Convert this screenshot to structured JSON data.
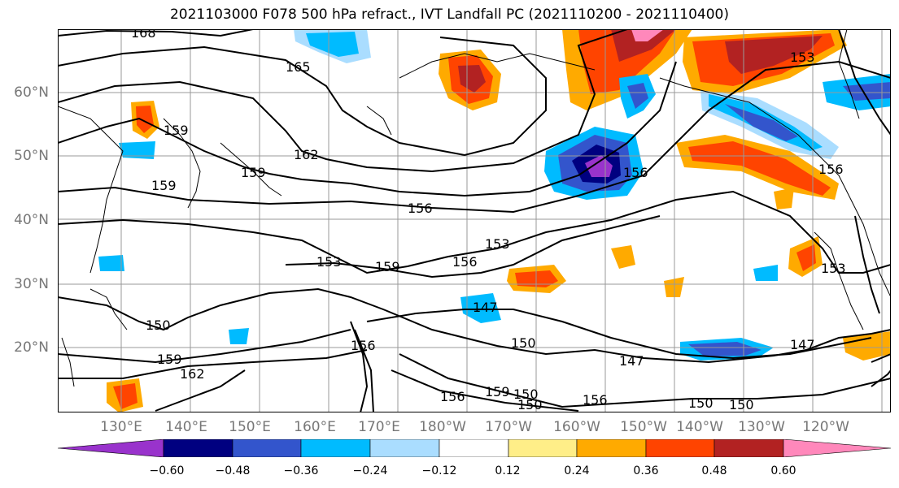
{
  "title": "2021103000 F078 500 hPa refract., IVT Landfall PC (2021110200 - 2021110400)",
  "lat_labels": [
    "60°N",
    "50°N",
    "40°N",
    "30°N",
    "20°N"
  ],
  "lon_labels": [
    "130°E",
    "140°E",
    "150°E",
    "160°E",
    "170°E",
    "180°W",
    "170°W",
    "160°W",
    "150°W",
    "140°W",
    "130°W",
    "120°W"
  ],
  "contour_labels": [
    "168",
    "165",
    "162",
    "159",
    "159",
    "156",
    "153",
    "153",
    "159",
    "156",
    "153",
    "147",
    "150",
    "150",
    "147",
    "147",
    "150",
    "150",
    "156",
    "159",
    "150",
    "156",
    "153",
    "156",
    "156",
    "159",
    "150",
    "156",
    "162",
    "159"
  ],
  "colorbar": {
    "ticks": [
      "−0.60",
      "−0.48",
      "−0.36",
      "−0.24",
      "−0.12",
      "0.12",
      "0.24",
      "0.36",
      "0.48",
      "0.60"
    ],
    "colors": [
      "#9933cc",
      "#000080",
      "#3355cc",
      "#00bbff",
      "#aaddff",
      "#ffffff",
      "#ffee88",
      "#ffaa00",
      "#ff4400",
      "#b22222",
      "#ff88bb"
    ]
  },
  "colors": {
    "contour": "#000000",
    "grid": "#999999",
    "coast": "#000000",
    "neg_light": "#aaddff",
    "neg_mid": "#00bbff",
    "neg_dark": "#3355cc",
    "neg_deep": "#000080",
    "neg_min": "#9933cc",
    "pos_light": "#ffee88",
    "pos_mid": "#ffaa00",
    "pos_dark": "#ff4400",
    "pos_deep": "#b22222",
    "pos_max": "#ff88bb"
  }
}
